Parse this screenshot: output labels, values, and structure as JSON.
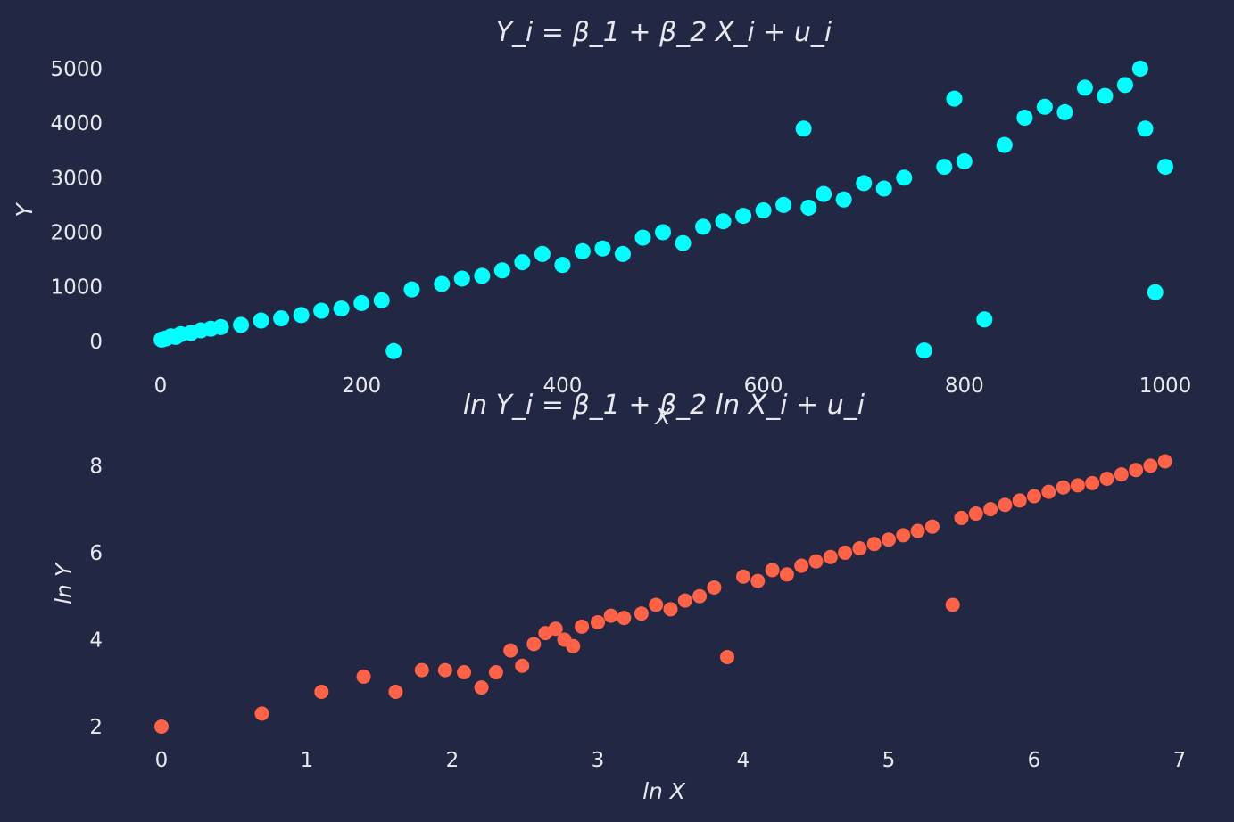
{
  "chart_data": [
    {
      "type": "scatter",
      "title": "Y_i = β_1 + β_2 X_i + u_i",
      "xlabel": "X",
      "ylabel": "Y",
      "xlim": [
        0,
        1000
      ],
      "ylim": [
        -200,
        5000
      ],
      "xticks": [
        "0",
        "200",
        "400",
        "600",
        "800",
        "1000"
      ],
      "yticks": [
        "0",
        "1000",
        "2000",
        "3000",
        "4000",
        "5000"
      ],
      "grid": false,
      "color": "#00ffff",
      "series": [
        {
          "x": [
            1,
            5,
            10,
            15,
            20,
            30,
            40,
            50,
            60,
            80,
            100,
            120,
            140,
            160,
            180,
            200,
            220,
            232,
            250,
            280,
            300,
            320,
            340,
            360,
            380,
            400,
            420,
            440,
            460,
            480,
            500,
            520,
            540,
            560,
            580,
            600,
            620,
            640,
            645,
            660,
            680,
            700,
            720,
            740,
            760,
            780,
            790,
            800,
            820,
            840,
            860,
            880,
            900,
            920,
            940,
            960,
            975,
            980,
            990,
            1000
          ],
          "y": [
            30,
            50,
            90,
            80,
            130,
            150,
            200,
            230,
            260,
            300,
            380,
            420,
            480,
            560,
            600,
            700,
            750,
            -180,
            950,
            1050,
            1150,
            1200,
            1300,
            1450,
            1600,
            1400,
            1650,
            1700,
            1600,
            1900,
            2000,
            1800,
            2100,
            2200,
            2300,
            2400,
            2500,
            3900,
            2450,
            2700,
            2600,
            2900,
            2800,
            3000,
            -170,
            3200,
            4450,
            3300,
            400,
            3600,
            4100,
            4300,
            4200,
            4650,
            4500,
            4700,
            5000,
            3900,
            900,
            3200
          ]
        }
      ]
    },
    {
      "type": "scatter",
      "title": "ln Y_i = β_1 + β_2 ln X_i + u_i",
      "xlabel": "ln X",
      "ylabel": "ln Y",
      "xlim": [
        0,
        7
      ],
      "ylim": [
        2,
        8.5
      ],
      "xticks": [
        "0",
        "1",
        "2",
        "3",
        "4",
        "5",
        "6",
        "7"
      ],
      "yticks": [
        "2",
        "4",
        "6",
        "8"
      ],
      "grid": false,
      "color": "#ff6347",
      "series": [
        {
          "x": [
            0,
            0.69,
            1.1,
            1.39,
            1.61,
            1.79,
            1.95,
            2.08,
            2.2,
            2.3,
            2.4,
            2.48,
            2.56,
            2.64,
            2.71,
            2.77,
            2.83,
            2.89,
            3.0,
            3.09,
            3.18,
            3.3,
            3.4,
            3.5,
            3.6,
            3.7,
            3.8,
            3.89,
            4.0,
            4.1,
            4.2,
            4.3,
            4.4,
            4.5,
            4.6,
            4.7,
            4.8,
            4.9,
            5.0,
            5.1,
            5.2,
            5.3,
            5.44,
            5.5,
            5.6,
            5.7,
            5.8,
            5.9,
            6.0,
            6.1,
            6.2,
            6.3,
            6.4,
            6.5,
            6.6,
            6.7,
            6.8,
            6.9
          ],
          "y": [
            2.0,
            2.3,
            2.8,
            3.15,
            2.8,
            3.3,
            3.3,
            3.25,
            2.9,
            3.25,
            3.75,
            3.4,
            3.9,
            4.15,
            4.25,
            4.0,
            3.85,
            4.3,
            4.4,
            4.55,
            4.5,
            4.6,
            4.8,
            4.7,
            4.9,
            5.0,
            5.2,
            3.6,
            5.45,
            5.35,
            5.6,
            5.5,
            5.7,
            5.8,
            5.9,
            6.0,
            6.1,
            6.2,
            6.3,
            6.4,
            6.5,
            6.6,
            4.8,
            6.8,
            6.9,
            7.0,
            7.1,
            7.2,
            7.3,
            7.4,
            7.5,
            7.55,
            7.6,
            7.7,
            7.8,
            7.9,
            8.0,
            8.1
          ]
        }
      ]
    }
  ]
}
